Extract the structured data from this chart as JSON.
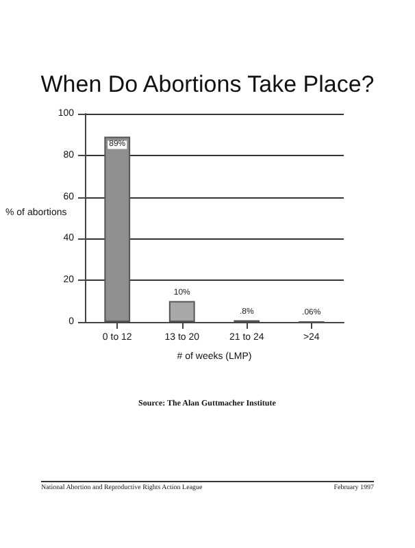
{
  "chart_data": {
    "type": "bar",
    "title": "When Do Abortions Take Place?",
    "xlabel": "# of weeks (LMP)",
    "ylabel": "% of abortions",
    "categories": [
      "0 to 12",
      "13 to 20",
      "21 to 24",
      ">24"
    ],
    "values": [
      89,
      10,
      0.8,
      0.06
    ],
    "value_labels": [
      "89%",
      "10%",
      ".8%",
      ".06%"
    ],
    "colors": [
      "#8f8f8f",
      "#a8a8a8",
      "#555555",
      "#555555"
    ],
    "ylim": [
      0,
      100
    ],
    "yticks": [
      0,
      20,
      40,
      60,
      80,
      100
    ],
    "grid": "y",
    "annotations": [
      "Source: The Alan Guttmacher Institute",
      "National Abortion and Reproductive Rights Action League",
      "February 1997"
    ]
  }
}
